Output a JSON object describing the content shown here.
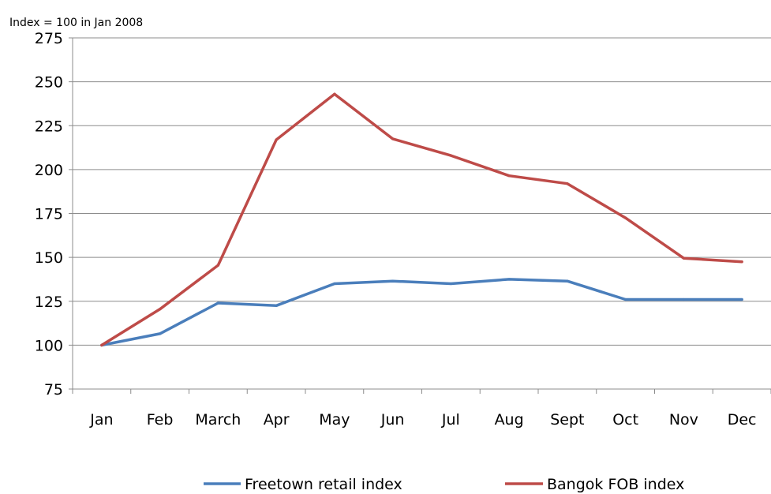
{
  "chart_data": {
    "type": "line",
    "ylabel": "Index = 100 in Jan 2008",
    "categories": [
      "Jan",
      "Feb",
      "March",
      "Apr",
      "May",
      "Jun",
      "Jul",
      "Aug",
      "Sept",
      "Oct",
      "Nov",
      "Dec"
    ],
    "ylim": [
      75,
      275
    ],
    "yticks": [
      75,
      100,
      125,
      150,
      175,
      200,
      225,
      250,
      275
    ],
    "grid": true,
    "legend_position": "bottom",
    "series": [
      {
        "name": "Freetown  retail index",
        "color": "#4a7ebb",
        "values": [
          100,
          106.5,
          124,
          122.5,
          135,
          136.5,
          135,
          137.5,
          136.5,
          126,
          126,
          126
        ]
      },
      {
        "name": "Bangok FOB index",
        "color": "#be4b48",
        "values": [
          100,
          120.5,
          145.5,
          217,
          243,
          217.5,
          208,
          196.5,
          192,
          172.5,
          149.5,
          147.5
        ]
      }
    ]
  }
}
